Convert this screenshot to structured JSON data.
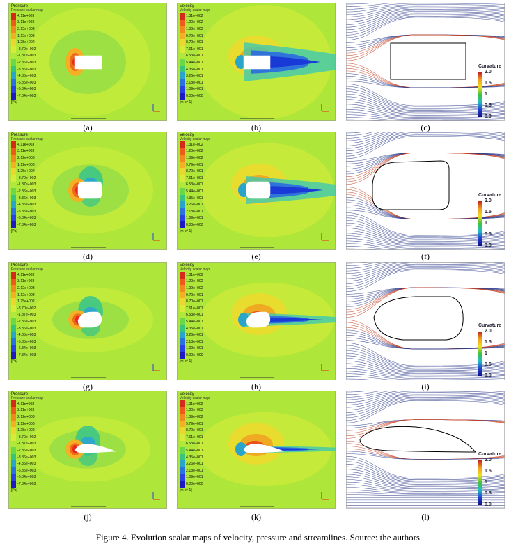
{
  "pressure_legend": {
    "title": "Pressure",
    "subtitle": "Pressure scalar map",
    "values": [
      "4.11e+003",
      "3.11e+003",
      "2.12e+003",
      "1.12e+003",
      "1.25e+002",
      "-8.70e+002",
      "-1.87e+003",
      "-2.86e+003",
      "-3.86e+003",
      "-4.85e+003",
      "-5.85e+003",
      "-6.84e+003",
      "-7.84e+003"
    ],
    "unit": "[Pa]",
    "colors": [
      "#d42a1c",
      "#ee5a1c",
      "#f08a20",
      "#f2b024",
      "#ecd630",
      "#d8ea3c",
      "#b0e83c",
      "#6ad848",
      "#38c47c",
      "#2aa4c8",
      "#2a72e0",
      "#2a40e8",
      "#2018c0"
    ]
  },
  "velocity_legend": {
    "title": "Velocity",
    "subtitle": "Velocity scalar map",
    "values": [
      "1.31e+002",
      "1.20e+002",
      "1.09e+002",
      "9.79e+001",
      "8.70e+001",
      "7.61e+001",
      "6.53e+001",
      "5.44e+001",
      "4.35e+001",
      "3.26e+001",
      "2.18e+001",
      "1.09e+001",
      "0.00e+000"
    ],
    "unit": "[m s^-1]",
    "colors": [
      "#d42a1c",
      "#ee5a1c",
      "#f08a20",
      "#f2b024",
      "#ecd630",
      "#d8ea3c",
      "#b0e83c",
      "#6ad848",
      "#38c47c",
      "#2aa4c8",
      "#2a72e0",
      "#2a40e8",
      "#2018c0"
    ]
  },
  "curvature_legend": {
    "title": "Curvature",
    "ticks": [
      "2.0",
      "1.5",
      "1",
      "0.5",
      "0.0"
    ]
  },
  "subfigure_labels": [
    "(a)",
    "(b)",
    "(c)",
    "(d)",
    "(e)",
    "(f)",
    "(g)",
    "(h)",
    "(i)",
    "(j)",
    "(k)",
    "(l)"
  ],
  "caption": "Figure 4. Evolution scalar maps of velocity, pressure and streamlines. Source: the authors.",
  "colors": {
    "field_background": "#aee63a",
    "stagnation": "#e8281c",
    "wake": "#1a3ad8",
    "streamline": "#2a3a8a"
  }
}
